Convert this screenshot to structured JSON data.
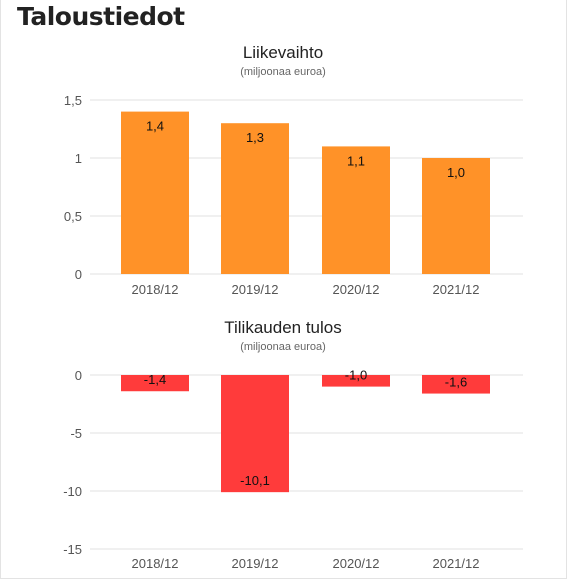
{
  "page": {
    "title": "Taloustiedot"
  },
  "chart_data": [
    {
      "type": "bar",
      "title": "Liikevaihto",
      "subtitle": "(miljoonaa euroa)",
      "categories": [
        "2018/12",
        "2019/12",
        "2020/12",
        "2021/12"
      ],
      "values": [
        1.4,
        1.3,
        1.1,
        1.0
      ],
      "value_labels": [
        "1,4",
        "1,3",
        "1,1",
        "1,0"
      ],
      "ylim": [
        0,
        1.5
      ],
      "yticks": [
        0,
        0.5,
        1,
        1.5
      ],
      "ytick_labels": [
        "0",
        "0,5",
        "1",
        "1,5"
      ],
      "color": "#ff9228",
      "grid": true
    },
    {
      "type": "bar",
      "title": "Tilikauden tulos",
      "subtitle": "(miljoonaa euroa)",
      "categories": [
        "2018/12",
        "2019/12",
        "2020/12",
        "2021/12"
      ],
      "values": [
        -1.4,
        -10.1,
        -1.0,
        -1.6
      ],
      "value_labels": [
        "-1,4",
        "-10,1",
        "-1,0",
        "-1,6"
      ],
      "ylim": [
        -15,
        0
      ],
      "yticks": [
        0,
        -5,
        -10,
        -15
      ],
      "ytick_labels": [
        "0",
        "-5",
        "-10",
        "-15"
      ],
      "color": "#ff3b3b",
      "grid": true
    }
  ]
}
